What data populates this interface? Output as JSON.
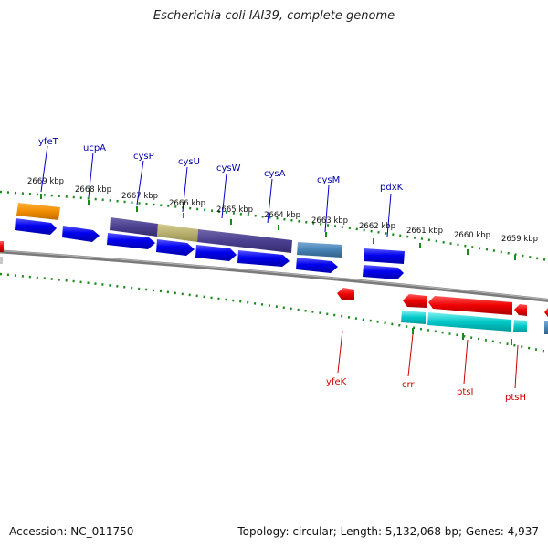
{
  "title": "Escherichia coli IAI39, complete genome",
  "footer": {
    "accession_label": "Accession: NC_011750",
    "summary": "Topology: circular; Length: 5,132,068 bp; Genes: 4,937"
  },
  "map": {
    "scale_labels": [
      "2669 kbp",
      "2668 kbp",
      "2667 kbp",
      "2666 kbp",
      "2665 kbp",
      "2664 kbp",
      "2663 kbp",
      "2662 kbp",
      "2661 kbp",
      "2660 kbp",
      "2659 kbp"
    ],
    "forward_genes": [
      "yfeT",
      "ucpA",
      "cysP",
      "cysU",
      "cysW",
      "cysA",
      "cysM",
      "pdxK"
    ],
    "reverse_genes": [
      "yfeK",
      "crr",
      "ptsI",
      "ptsH"
    ],
    "colors": {
      "backbone": "#7a7a7a",
      "cds_blue": "#0000ee",
      "operon_purple": "#4b3f8f",
      "operon_olive": "#b8b070",
      "orange": "#f08c00",
      "steelblue": "#4682b4",
      "red": "#ee0000",
      "cyan": "#00c8c8",
      "tick_green": "#1a8a1a",
      "forward_label": "#0000aa",
      "reverse_label": "#cc0000"
    }
  }
}
